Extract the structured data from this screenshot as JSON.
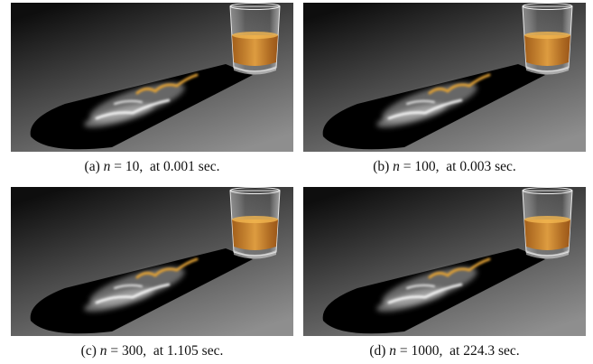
{
  "panels": [
    {
      "label": "(a)",
      "variable": "n",
      "equation": "= 10,",
      "time": "at 0.001 sec."
    },
    {
      "label": "(b)",
      "variable": "n",
      "equation": "= 100,",
      "time": "at 0.003 sec."
    },
    {
      "label": "(c)",
      "variable": "n",
      "equation": "= 300,",
      "time": "at 1.105 sec."
    },
    {
      "label": "(d)",
      "variable": "n",
      "equation": "= 1000,",
      "time": "at 224.3 sec."
    }
  ]
}
